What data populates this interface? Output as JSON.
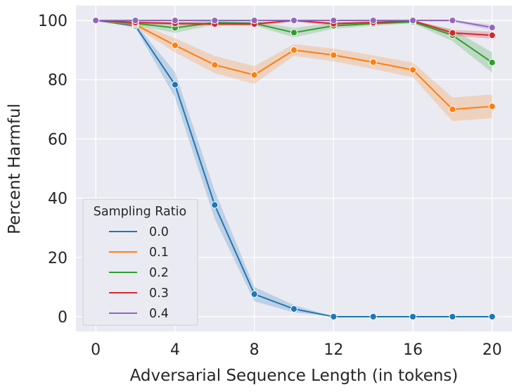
{
  "chart_data": {
    "type": "line",
    "title": "",
    "xlabel": "Adversarial Sequence Length (in tokens)",
    "ylabel": "Percent Harmful",
    "xlim": [
      -1,
      21
    ],
    "ylim": [
      -5,
      105
    ],
    "xticks": [
      0,
      4,
      8,
      12,
      16,
      20
    ],
    "yticks": [
      0,
      20,
      40,
      60,
      80,
      100
    ],
    "grid": true,
    "legend": {
      "title": "Sampling Ratio",
      "position": "lower-left"
    },
    "x": [
      0,
      2,
      4,
      6,
      8,
      10,
      12,
      14,
      16,
      18,
      20
    ],
    "series": [
      {
        "name": "0.0",
        "color": "#1f77b4",
        "values": [
          100,
          98.2,
          78.3,
          37.7,
          7.6,
          2.6,
          0,
          0,
          0,
          0,
          0
        ],
        "lower": [
          100,
          97.5,
          74.0,
          33.0,
          5.2,
          1.4,
          0,
          0,
          0,
          0,
          0
        ],
        "upper": [
          100,
          99.0,
          82.5,
          42.5,
          10.0,
          3.9,
          0,
          0,
          0,
          0,
          0
        ]
      },
      {
        "name": "0.1",
        "color": "#ff7f0e",
        "values": [
          100,
          98.6,
          91.6,
          85.0,
          81.6,
          90.0,
          88.3,
          85.9,
          83.3,
          70.0,
          71.0
        ],
        "lower": [
          100,
          97.8,
          89.2,
          82.2,
          78.6,
          88.0,
          86.2,
          83.6,
          80.8,
          66.0,
          67.0
        ],
        "upper": [
          100,
          99.4,
          94.0,
          88.0,
          84.6,
          92.0,
          90.5,
          88.2,
          85.8,
          74.0,
          75.0
        ]
      },
      {
        "name": "0.2",
        "color": "#2ca02c",
        "values": [
          100,
          99.0,
          97.5,
          99.3,
          99.0,
          95.9,
          98.2,
          98.9,
          99.5,
          95.0,
          85.8
        ],
        "lower": [
          100,
          98.4,
          95.8,
          98.6,
          98.3,
          94.3,
          97.2,
          98.2,
          99.0,
          93.0,
          82.4
        ],
        "upper": [
          100,
          99.6,
          99.2,
          100,
          99.8,
          97.5,
          99.2,
          99.6,
          100,
          97.0,
          89.2
        ]
      },
      {
        "name": "0.3",
        "color": "#d62728",
        "values": [
          100,
          99.3,
          99.0,
          98.8,
          98.8,
          100,
          98.9,
          99.3,
          99.9,
          95.8,
          95.0
        ],
        "lower": [
          100,
          98.8,
          98.4,
          98.2,
          98.2,
          99.6,
          98.3,
          98.8,
          99.6,
          94.8,
          93.8
        ],
        "upper": [
          100,
          99.8,
          99.6,
          99.4,
          99.4,
          100,
          99.5,
          99.8,
          100,
          96.8,
          96.2
        ]
      },
      {
        "name": "0.4",
        "color": "#9467bd",
        "values": [
          100,
          100,
          100,
          100,
          100,
          100,
          100,
          100,
          100,
          100,
          97.6
        ],
        "lower": [
          100,
          99.8,
          99.8,
          99.8,
          99.8,
          99.8,
          99.8,
          99.8,
          99.8,
          99.6,
          96.6
        ],
        "upper": [
          100,
          100,
          100,
          100,
          100,
          100,
          100,
          100,
          100,
          100,
          98.6
        ]
      }
    ]
  }
}
